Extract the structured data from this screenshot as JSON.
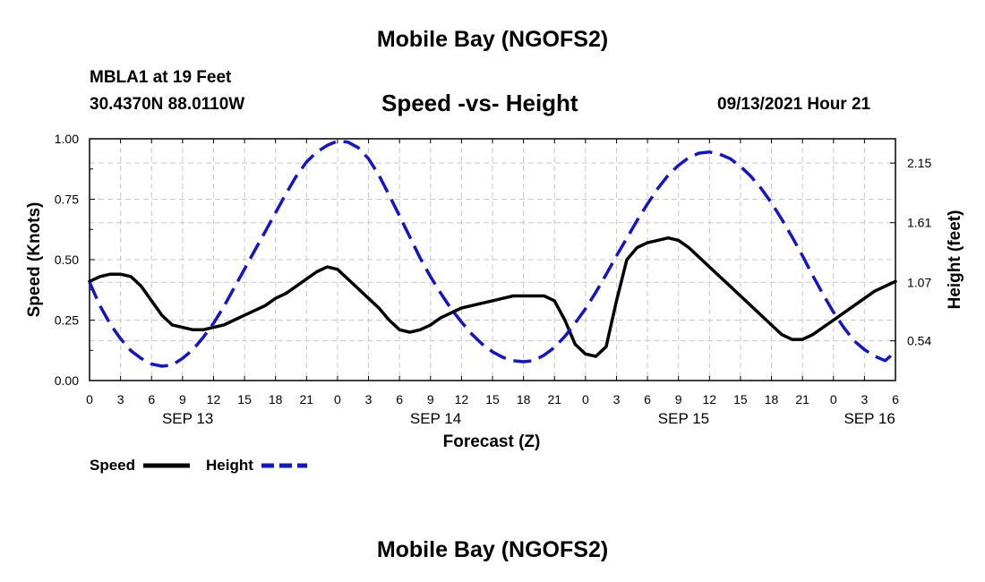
{
  "header": {
    "title": "Mobile Bay (NGOFS2)",
    "station": "MBLA1 at 19 Feet",
    "coords": "30.4370N  88.0110W",
    "subtitle": "Speed -vs- Height",
    "datetime": "09/13/2021 Hour 21",
    "footer_title": "Mobile Bay (NGOFS2)"
  },
  "legend": {
    "speed_label": "Speed",
    "height_label": "Height"
  },
  "chart_data": {
    "type": "line",
    "title": "Speed -vs- Height",
    "xlabel": "Forecast (Z)",
    "ylabel": "Speed (Knots)",
    "y2label": "Height (feet)",
    "xlim_hours": [
      0,
      78
    ],
    "ylim": [
      0,
      1.0
    ],
    "y2lim": [
      0.18,
      2.37
    ],
    "x_tick_labels": [
      "0",
      "3",
      "6",
      "9",
      "12",
      "15",
      "18",
      "21",
      "0",
      "3",
      "6",
      "9",
      "12",
      "15",
      "18",
      "21",
      "0",
      "3",
      "6",
      "9",
      "12",
      "15",
      "18",
      "21",
      "0",
      "3",
      "6"
    ],
    "date_labels": [
      {
        "label": "SEP 13",
        "hour": 9.5
      },
      {
        "label": "SEP 14",
        "hour": 33.5
      },
      {
        "label": "SEP 15",
        "hour": 57.5
      },
      {
        "label": "SEP 16",
        "hour": 75.5
      }
    ],
    "y_ticks": [
      "0.00",
      "0.25",
      "0.50",
      "0.75",
      "1.00"
    ],
    "y2_ticks": [
      "0.54",
      "1.07",
      "1.61",
      "2.15"
    ],
    "grid": true,
    "legend_position": "bottom-left",
    "series": [
      {
        "name": "Speed",
        "axis": "left",
        "color": "#000000",
        "dash": "solid",
        "points": [
          [
            0,
            0.41
          ],
          [
            1,
            0.43
          ],
          [
            2,
            0.44
          ],
          [
            3,
            0.44
          ],
          [
            4,
            0.43
          ],
          [
            5,
            0.39
          ],
          [
            6,
            0.33
          ],
          [
            7,
            0.27
          ],
          [
            8,
            0.23
          ],
          [
            9,
            0.22
          ],
          [
            10,
            0.21
          ],
          [
            11,
            0.21
          ],
          [
            12,
            0.22
          ],
          [
            13,
            0.23
          ],
          [
            14,
            0.25
          ],
          [
            15,
            0.27
          ],
          [
            16,
            0.29
          ],
          [
            17,
            0.31
          ],
          [
            18,
            0.34
          ],
          [
            19,
            0.36
          ],
          [
            20,
            0.39
          ],
          [
            21,
            0.42
          ],
          [
            22,
            0.45
          ],
          [
            23,
            0.47
          ],
          [
            24,
            0.46
          ],
          [
            25,
            0.42
          ],
          [
            26,
            0.38
          ],
          [
            27,
            0.34
          ],
          [
            28,
            0.3
          ],
          [
            29,
            0.25
          ],
          [
            30,
            0.21
          ],
          [
            31,
            0.2
          ],
          [
            32,
            0.21
          ],
          [
            33,
            0.23
          ],
          [
            34,
            0.26
          ],
          [
            35,
            0.28
          ],
          [
            36,
            0.3
          ],
          [
            37,
            0.31
          ],
          [
            38,
            0.32
          ],
          [
            39,
            0.33
          ],
          [
            40,
            0.34
          ],
          [
            41,
            0.35
          ],
          [
            42,
            0.35
          ],
          [
            43,
            0.35
          ],
          [
            44,
            0.35
          ],
          [
            45,
            0.33
          ],
          [
            46,
            0.25
          ],
          [
            47,
            0.15
          ],
          [
            48,
            0.11
          ],
          [
            49,
            0.1
          ],
          [
            50,
            0.14
          ],
          [
            51,
            0.33
          ],
          [
            52,
            0.5
          ],
          [
            53,
            0.55
          ],
          [
            54,
            0.57
          ],
          [
            55,
            0.58
          ],
          [
            56,
            0.59
          ],
          [
            57,
            0.58
          ],
          [
            58,
            0.55
          ],
          [
            59,
            0.51
          ],
          [
            60,
            0.47
          ],
          [
            61,
            0.43
          ],
          [
            62,
            0.39
          ],
          [
            63,
            0.35
          ],
          [
            64,
            0.31
          ],
          [
            65,
            0.27
          ],
          [
            66,
            0.23
          ],
          [
            67,
            0.19
          ],
          [
            68,
            0.17
          ],
          [
            69,
            0.17
          ],
          [
            70,
            0.19
          ],
          [
            71,
            0.22
          ],
          [
            72,
            0.25
          ],
          [
            73,
            0.28
          ],
          [
            74,
            0.31
          ],
          [
            75,
            0.34
          ],
          [
            76,
            0.37
          ],
          [
            77,
            0.39
          ],
          [
            78,
            0.41
          ]
        ]
      },
      {
        "name": "Height",
        "axis": "right",
        "color": "#1414c8",
        "dash": "dashed",
        "points": [
          [
            0,
            1.07
          ],
          [
            1,
            0.86
          ],
          [
            2,
            0.69
          ],
          [
            3,
            0.56
          ],
          [
            4,
            0.45
          ],
          [
            5,
            0.38
          ],
          [
            6,
            0.33
          ],
          [
            7,
            0.31
          ],
          [
            8,
            0.32
          ],
          [
            9,
            0.38
          ],
          [
            10,
            0.46
          ],
          [
            11,
            0.57
          ],
          [
            12,
            0.7
          ],
          [
            13,
            0.85
          ],
          [
            14,
            1.02
          ],
          [
            15,
            1.19
          ],
          [
            16,
            1.36
          ],
          [
            17,
            1.53
          ],
          [
            18,
            1.7
          ],
          [
            19,
            1.87
          ],
          [
            20,
            2.03
          ],
          [
            21,
            2.16
          ],
          [
            22,
            2.25
          ],
          [
            23,
            2.31
          ],
          [
            24,
            2.35
          ],
          [
            25,
            2.34
          ],
          [
            26,
            2.29
          ],
          [
            27,
            2.19
          ],
          [
            28,
            2.04
          ],
          [
            29,
            1.86
          ],
          [
            30,
            1.67
          ],
          [
            31,
            1.48
          ],
          [
            32,
            1.29
          ],
          [
            33,
            1.12
          ],
          [
            34,
            0.97
          ],
          [
            35,
            0.83
          ],
          [
            36,
            0.71
          ],
          [
            37,
            0.6
          ],
          [
            38,
            0.51
          ],
          [
            39,
            0.44
          ],
          [
            40,
            0.39
          ],
          [
            41,
            0.36
          ],
          [
            42,
            0.35
          ],
          [
            43,
            0.36
          ],
          [
            44,
            0.41
          ],
          [
            45,
            0.48
          ],
          [
            46,
            0.58
          ],
          [
            47,
            0.7
          ],
          [
            48,
            0.83
          ],
          [
            49,
            0.98
          ],
          [
            50,
            1.14
          ],
          [
            51,
            1.31
          ],
          [
            52,
            1.47
          ],
          [
            53,
            1.63
          ],
          [
            54,
            1.78
          ],
          [
            55,
            1.92
          ],
          [
            56,
            2.04
          ],
          [
            57,
            2.13
          ],
          [
            58,
            2.2
          ],
          [
            59,
            2.24
          ],
          [
            60,
            2.25
          ],
          [
            61,
            2.23
          ],
          [
            62,
            2.19
          ],
          [
            63,
            2.12
          ],
          [
            64,
            2.03
          ],
          [
            65,
            1.92
          ],
          [
            66,
            1.79
          ],
          [
            67,
            1.64
          ],
          [
            68,
            1.48
          ],
          [
            69,
            1.31
          ],
          [
            70,
            1.13
          ],
          [
            71,
            0.96
          ],
          [
            72,
            0.8
          ],
          [
            73,
            0.66
          ],
          [
            74,
            0.54
          ],
          [
            75,
            0.46
          ],
          [
            76,
            0.4
          ],
          [
            77,
            0.36
          ],
          [
            78,
            0.44
          ]
        ]
      }
    ]
  }
}
